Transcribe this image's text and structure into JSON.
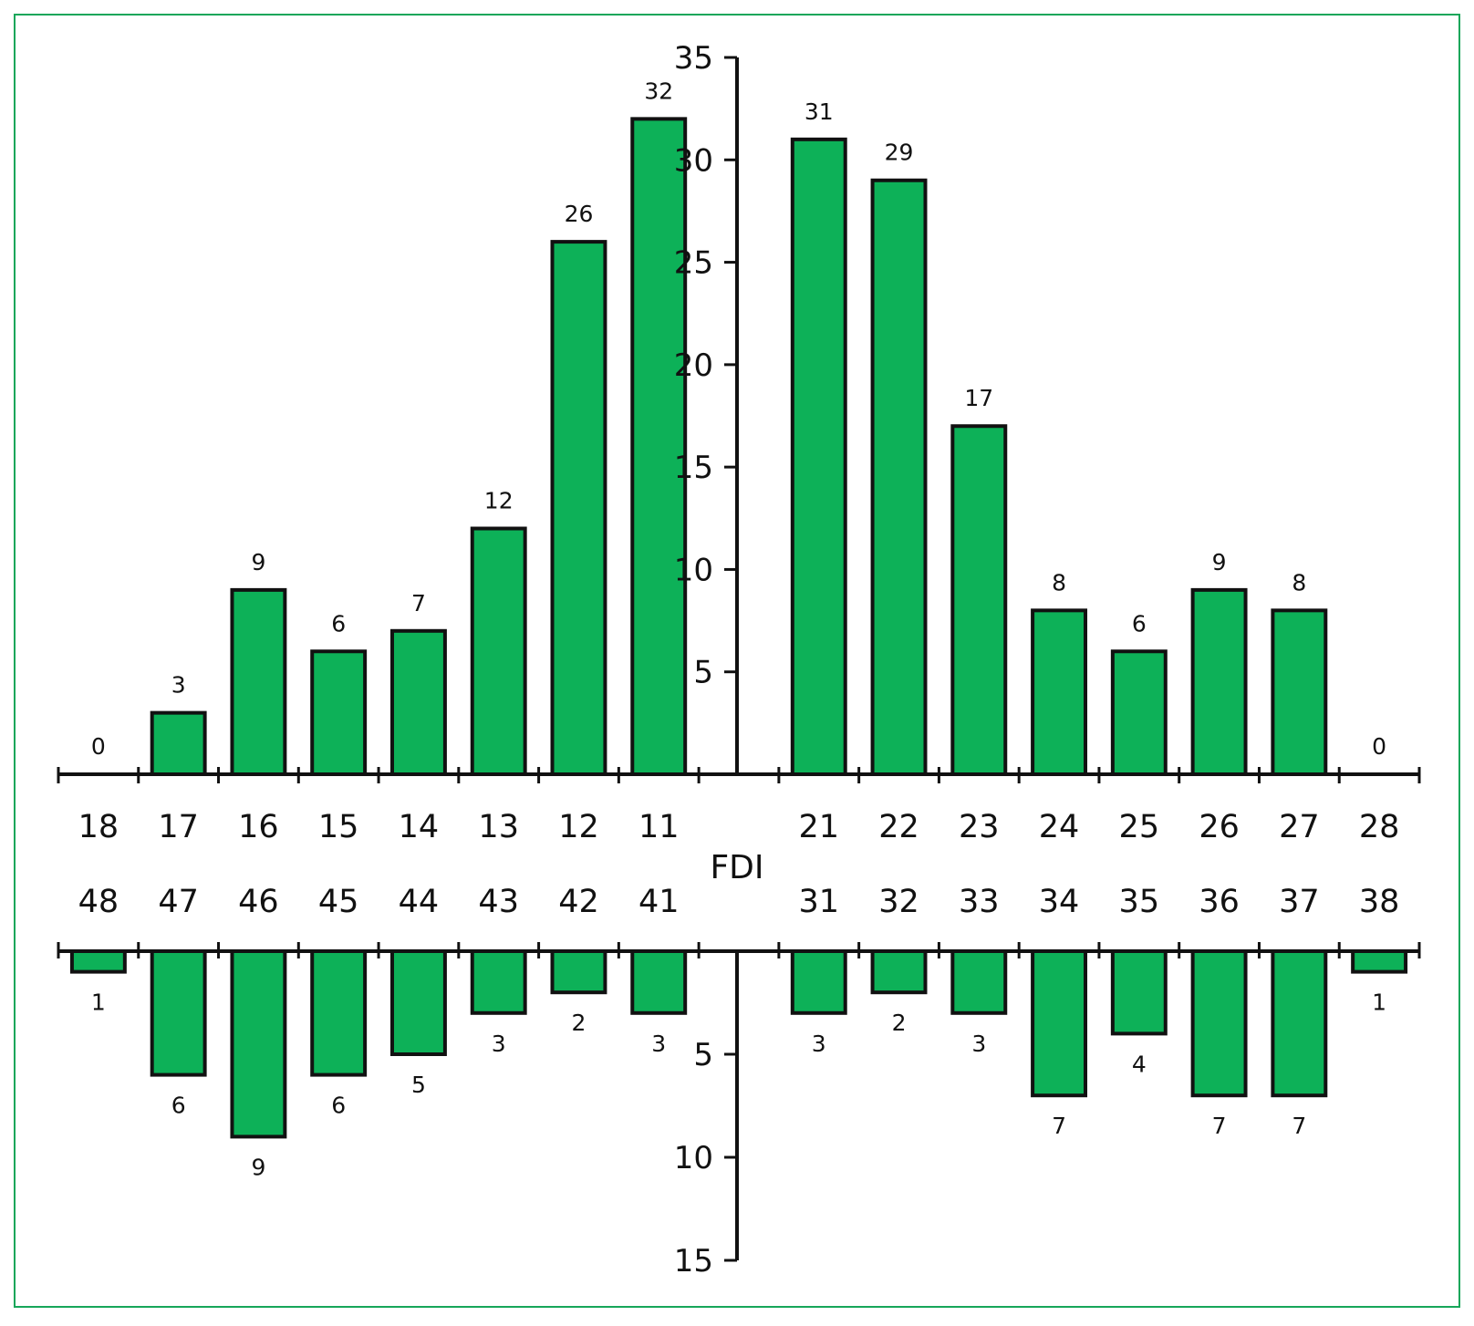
{
  "chart_data": {
    "type": "bar",
    "axis_label": "FDI",
    "upper": {
      "categories": [
        "18",
        "17",
        "16",
        "15",
        "14",
        "13",
        "12",
        "11",
        "",
        "21",
        "22",
        "23",
        "24",
        "25",
        "26",
        "27",
        "28"
      ],
      "values": [
        0,
        3,
        9,
        6,
        7,
        12,
        26,
        32,
        null,
        31,
        29,
        17,
        8,
        6,
        9,
        8,
        0
      ],
      "ylim": [
        0,
        35
      ],
      "yticks": [
        "5",
        "10",
        "15",
        "20",
        "25",
        "30",
        "35"
      ]
    },
    "lower": {
      "categories": [
        "48",
        "47",
        "46",
        "45",
        "44",
        "43",
        "42",
        "41",
        "",
        "31",
        "32",
        "33",
        "34",
        "35",
        "36",
        "37",
        "38"
      ],
      "values": [
        1,
        6,
        9,
        6,
        5,
        3,
        2,
        3,
        null,
        3,
        2,
        3,
        7,
        4,
        7,
        7,
        1
      ],
      "ylim": [
        0,
        15
      ],
      "yticks": [
        "5",
        "10",
        "15"
      ]
    },
    "bar_color": "#0db158",
    "grid": false
  }
}
